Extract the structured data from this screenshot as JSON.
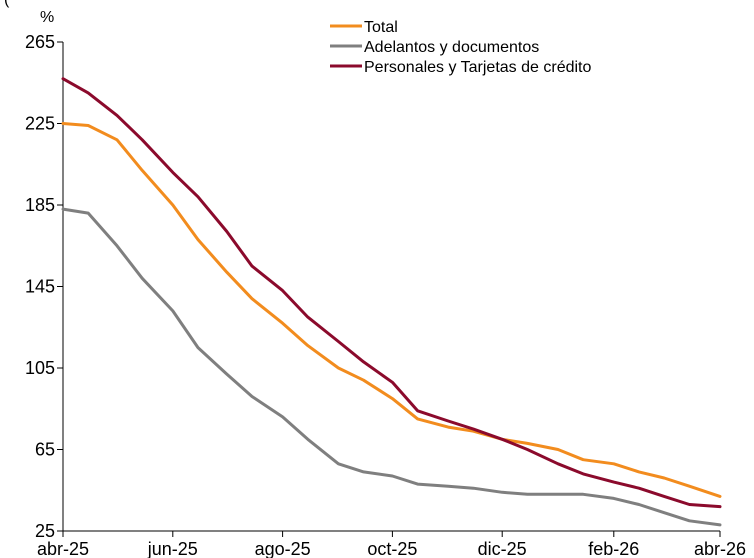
{
  "top_text": "(",
  "chart_data": {
    "type": "line",
    "y_unit": "%",
    "ylim": [
      25,
      265
    ],
    "yticks": [
      25,
      65,
      105,
      145,
      185,
      225,
      265
    ],
    "xlim": [
      "2025-04-01",
      "2026-04-01"
    ],
    "xticks": [
      {
        "date": "2025-04-01",
        "label": "abr-25"
      },
      {
        "date": "2025-06-01",
        "label": "jun-25"
      },
      {
        "date": "2025-08-01",
        "label": "ago-25"
      },
      {
        "date": "2025-10-01",
        "label": "oct-25"
      },
      {
        "date": "2025-12-01",
        "label": "dic-25"
      },
      {
        "date": "2026-02-01",
        "label": "feb-26"
      },
      {
        "date": "2026-04-01",
        "label": "abr-26"
      }
    ],
    "grid": false,
    "legend_position": "top-right",
    "series": [
      {
        "name": "Total",
        "color": "#F28C1E",
        "points": [
          [
            "2025-04-01",
            225
          ],
          [
            "2025-04-15",
            224
          ],
          [
            "2025-05-01",
            217
          ],
          [
            "2025-05-15",
            202
          ],
          [
            "2025-06-01",
            185
          ],
          [
            "2025-06-15",
            168
          ],
          [
            "2025-07-01",
            152
          ],
          [
            "2025-07-15",
            139
          ],
          [
            "2025-08-01",
            127
          ],
          [
            "2025-08-15",
            116
          ],
          [
            "2025-09-01",
            105
          ],
          [
            "2025-09-15",
            99
          ],
          [
            "2025-10-01",
            90
          ],
          [
            "2025-10-15",
            80
          ],
          [
            "2025-11-01",
            76
          ],
          [
            "2025-11-15",
            74
          ],
          [
            "2025-12-01",
            70
          ],
          [
            "2025-12-15",
            68
          ],
          [
            "2026-01-01",
            65
          ],
          [
            "2026-01-15",
            60
          ],
          [
            "2026-02-01",
            58
          ],
          [
            "2026-02-15",
            54
          ],
          [
            "2026-03-01",
            51
          ],
          [
            "2026-03-15",
            47
          ],
          [
            "2026-04-01",
            42
          ]
        ]
      },
      {
        "name": "Adelantos y documentos",
        "color": "#7F7F7F",
        "points": [
          [
            "2025-04-01",
            183
          ],
          [
            "2025-04-15",
            181
          ],
          [
            "2025-05-01",
            165
          ],
          [
            "2025-05-15",
            149
          ],
          [
            "2025-06-01",
            133
          ],
          [
            "2025-06-15",
            115
          ],
          [
            "2025-07-01",
            102
          ],
          [
            "2025-07-15",
            91
          ],
          [
            "2025-08-01",
            81
          ],
          [
            "2025-08-15",
            70
          ],
          [
            "2025-09-01",
            58
          ],
          [
            "2025-09-15",
            54
          ],
          [
            "2025-10-01",
            52
          ],
          [
            "2025-10-15",
            48
          ],
          [
            "2025-11-01",
            47
          ],
          [
            "2025-11-15",
            46
          ],
          [
            "2025-12-01",
            44
          ],
          [
            "2025-12-15",
            43
          ],
          [
            "2026-01-01",
            43
          ],
          [
            "2026-01-15",
            43
          ],
          [
            "2026-02-01",
            41
          ],
          [
            "2026-02-15",
            38
          ],
          [
            "2026-03-01",
            34
          ],
          [
            "2026-03-15",
            30
          ],
          [
            "2026-04-01",
            28
          ]
        ]
      },
      {
        "name": "Personales y Tarjetas de crédito",
        "color": "#8B0A2C",
        "points": [
          [
            "2025-04-01",
            247
          ],
          [
            "2025-04-15",
            240
          ],
          [
            "2025-05-01",
            229
          ],
          [
            "2025-05-15",
            217
          ],
          [
            "2025-06-01",
            201
          ],
          [
            "2025-06-15",
            189
          ],
          [
            "2025-07-01",
            172
          ],
          [
            "2025-07-15",
            155
          ],
          [
            "2025-08-01",
            143
          ],
          [
            "2025-08-15",
            130
          ],
          [
            "2025-09-01",
            118
          ],
          [
            "2025-09-15",
            108
          ],
          [
            "2025-10-01",
            98
          ],
          [
            "2025-10-15",
            84
          ],
          [
            "2025-11-01",
            79
          ],
          [
            "2025-11-15",
            75
          ],
          [
            "2025-12-01",
            70
          ],
          [
            "2025-12-15",
            65
          ],
          [
            "2026-01-01",
            58
          ],
          [
            "2026-01-15",
            53
          ],
          [
            "2026-02-01",
            49
          ],
          [
            "2026-02-15",
            46
          ],
          [
            "2026-03-01",
            42
          ],
          [
            "2026-03-15",
            38
          ],
          [
            "2026-04-01",
            37
          ]
        ]
      }
    ]
  }
}
